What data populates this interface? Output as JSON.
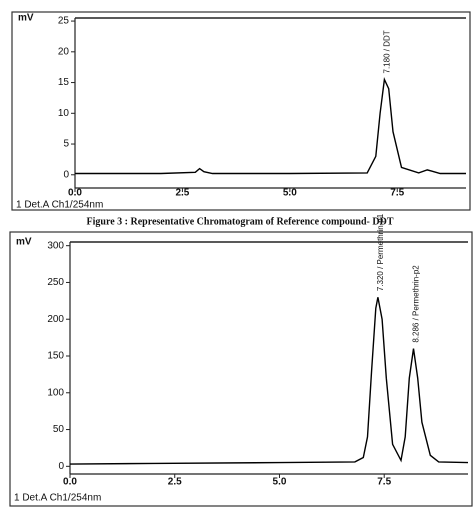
{
  "caption": "Figure 3 : Representative Chromatogram of Reference compound- DDT",
  "chart_data": [
    {
      "type": "line",
      "y_label": "mV",
      "xlim": [
        0,
        9.1
      ],
      "ylim": [
        -1.5,
        25.5
      ],
      "xticks": [
        {
          "value": 0,
          "label": "0.0"
        },
        {
          "value": 2.5,
          "label": "2.5"
        },
        {
          "value": 5,
          "label": "5.0"
        },
        {
          "value": 7.5,
          "label": "7.5"
        }
      ],
      "yticks": [
        0,
        5,
        10,
        15,
        20,
        25
      ],
      "annotations": [
        "7.180 / DDT"
      ],
      "series": [
        {
          "name": "1 Det.A Ch1/254nm",
          "color": "#000000",
          "x": [
            0,
            1,
            2,
            2.8,
            2.9,
            3.0,
            3.2,
            5,
            6.8,
            7.0,
            7.1,
            7.2,
            7.3,
            7.4,
            7.6,
            8.0,
            8.2,
            8.3,
            8.5,
            9.1
          ],
          "values": [
            0.2,
            0.2,
            0.2,
            0.4,
            1.0,
            0.5,
            0.2,
            0.2,
            0.3,
            3,
            10,
            15.5,
            14,
            7,
            1.2,
            0.3,
            0.8,
            0.6,
            0.2,
            0.2
          ]
        }
      ]
    },
    {
      "type": "line",
      "y_label": "mV",
      "xlim": [
        0,
        9.5
      ],
      "ylim": [
        -5,
        305
      ],
      "xticks": [
        {
          "value": 0,
          "label": "0.0"
        },
        {
          "value": 2.5,
          "label": "2.5"
        },
        {
          "value": 5,
          "label": "5.0"
        },
        {
          "value": 7.5,
          "label": "7.5"
        }
      ],
      "yticks": [
        0,
        50,
        100,
        150,
        200,
        250,
        300
      ],
      "annotations": [
        "7.320 / Permethrin-p1",
        "8.286 / Permethrin-p2"
      ],
      "series": [
        {
          "name": "1 Det.A Ch1/254nm",
          "color": "#000000",
          "x": [
            0,
            2,
            5,
            6.8,
            7.0,
            7.1,
            7.2,
            7.3,
            7.35,
            7.45,
            7.55,
            7.7,
            7.9,
            8.0,
            8.1,
            8.2,
            8.3,
            8.4,
            8.6,
            8.8,
            9.5
          ],
          "values": [
            3,
            4,
            5,
            6,
            12,
            40,
            130,
            215,
            230,
            200,
            120,
            30,
            8,
            40,
            120,
            160,
            120,
            60,
            15,
            6,
            5
          ]
        }
      ]
    }
  ]
}
